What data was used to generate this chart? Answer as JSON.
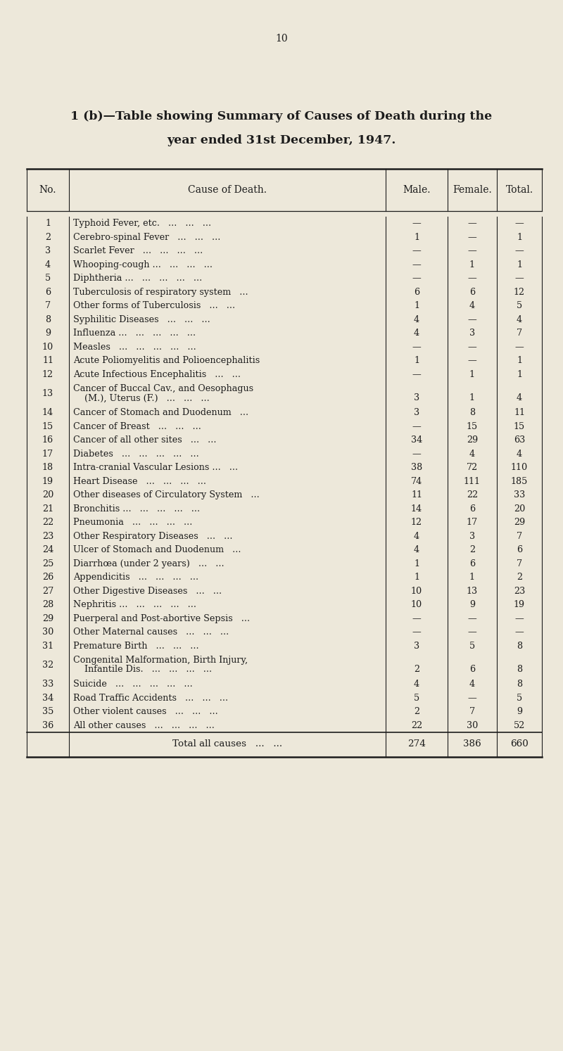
{
  "page_number": "10",
  "title_line1": "1 (b)—Table showing Summary of Causes of Death during the",
  "title_line2": "year ended 31st December, 1947.",
  "col_headers": [
    "No.",
    "Cause of Death.",
    "Male.",
    "Female.",
    "Total."
  ],
  "rows": [
    {
      "no": "1",
      "cause": "Typhoid Fever, etc.   ...   ...   ...",
      "male": "—",
      "female": "—",
      "total": "—"
    },
    {
      "no": "2",
      "cause": "Cerebro-spinal Fever   ...   ...   ...",
      "male": "1",
      "female": "—",
      "total": "1"
    },
    {
      "no": "3",
      "cause": "Scarlet Fever   ...   ...   ...   ...",
      "male": "—",
      "female": "—",
      "total": "—"
    },
    {
      "no": "4",
      "cause": "Whooping-cough ...   ...   ...   ...",
      "male": "—",
      "female": "1",
      "total": "1"
    },
    {
      "no": "5",
      "cause": "Diphtheria ...   ...   ...   ...   ...",
      "male": "—",
      "female": "—",
      "total": "—"
    },
    {
      "no": "6",
      "cause": "Tuberculosis of respiratory system   ...",
      "male": "6",
      "female": "6",
      "total": "12"
    },
    {
      "no": "7",
      "cause": "Other forms of Tuberculosis   ...   ...",
      "male": "1",
      "female": "4",
      "total": "5"
    },
    {
      "no": "8",
      "cause": "Syphilitic Diseases   ...   ...   ...",
      "male": "4",
      "female": "—",
      "total": "4"
    },
    {
      "no": "9",
      "cause": "Influenza ...   ...   ...   ...   ...",
      "male": "4",
      "female": "3",
      "total": "7"
    },
    {
      "no": "10",
      "cause": "Measles   ...   ...   ...   ...   ...",
      "male": "—",
      "female": "—",
      "total": "—"
    },
    {
      "no": "11",
      "cause": "Acute Poliomyelitis and Polioencephalitis",
      "male": "1",
      "female": "—",
      "total": "1"
    },
    {
      "no": "12",
      "cause": "Acute Infectious Encephalitis   ...   ...",
      "male": "—",
      "female": "1",
      "total": "1"
    },
    {
      "no": "13",
      "cause": "Cancer of Buccal Cav., and Oesophagus\n(M.), Uterus (F.)   ...   ...   ...",
      "male": "3",
      "female": "1",
      "total": "4"
    },
    {
      "no": "14",
      "cause": "Cancer of Stomach and Duodenum   ...",
      "male": "3",
      "female": "8",
      "total": "11"
    },
    {
      "no": "15",
      "cause": "Cancer of Breast   ...   ...   ...",
      "male": "—",
      "female": "15",
      "total": "15"
    },
    {
      "no": "16",
      "cause": "Cancer of all other sites   ...   ...",
      "male": "34",
      "female": "29",
      "total": "63"
    },
    {
      "no": "17",
      "cause": "Diabetes   ...   ...   ...   ...   ...",
      "male": "—",
      "female": "4",
      "total": "4"
    },
    {
      "no": "18",
      "cause": "Intra-cranial Vascular Lesions ...   ...",
      "male": "38",
      "female": "72",
      "total": "110"
    },
    {
      "no": "19",
      "cause": "Heart Disease   ...   ...   ...   ...",
      "male": "74",
      "female": "111",
      "total": "185"
    },
    {
      "no": "20",
      "cause": "Other diseases of Circulatory System   ...",
      "male": "11",
      "female": "22",
      "total": "33"
    },
    {
      "no": "21",
      "cause": "Bronchitis ...   ...   ...   ...   ...",
      "male": "14",
      "female": "6",
      "total": "20"
    },
    {
      "no": "22",
      "cause": "Pneumonia   ...   ...   ...   ...",
      "male": "12",
      "female": "17",
      "total": "29"
    },
    {
      "no": "23",
      "cause": "Other Respiratory Diseases   ...   ...",
      "male": "4",
      "female": "3",
      "total": "7"
    },
    {
      "no": "24",
      "cause": "Ulcer of Stomach and Duodenum   ...",
      "male": "4",
      "female": "2",
      "total": "6"
    },
    {
      "no": "25",
      "cause": "Diarrhœa (under 2 years)   ...   ...",
      "male": "1",
      "female": "6",
      "total": "7"
    },
    {
      "no": "26",
      "cause": "Appendicitis   ...   ...   ...   ...",
      "male": "1",
      "female": "1",
      "total": "2"
    },
    {
      "no": "27",
      "cause": "Other Digestive Diseases   ...   ...",
      "male": "10",
      "female": "13",
      "total": "23"
    },
    {
      "no": "28",
      "cause": "Nephritis ...   ...   ...   ...   ...",
      "male": "10",
      "female": "9",
      "total": "19"
    },
    {
      "no": "29",
      "cause": "Puerperal and Post-abortive Sepsis   ...",
      "male": "—",
      "female": "—",
      "total": "—"
    },
    {
      "no": "30",
      "cause": "Other Maternal causes   ...   ...   ...",
      "male": "—",
      "female": "—",
      "total": "—"
    },
    {
      "no": "31",
      "cause": "Premature Birth   ...   ...   ...",
      "male": "3",
      "female": "5",
      "total": "8"
    },
    {
      "no": "32",
      "cause": "Congenital Malformation, Birth Injury,\nInfantile Dis.   ...   ...   ...   ...",
      "male": "2",
      "female": "6",
      "total": "8"
    },
    {
      "no": "33",
      "cause": "Suicide   ...   ...   ...   ...   ...",
      "male": "4",
      "female": "4",
      "total": "8"
    },
    {
      "no": "34",
      "cause": "Road Traffic Accidents   ...   ...   ...",
      "male": "5",
      "female": "—",
      "total": "5"
    },
    {
      "no": "35",
      "cause": "Other violent causes   ...   ...   ...",
      "male": "2",
      "female": "7",
      "total": "9"
    },
    {
      "no": "36",
      "cause": "All other causes   ...   ...   ...   ...",
      "male": "22",
      "female": "30",
      "total": "52"
    }
  ],
  "total_row": {
    "cause": "Total all causes   ...   ...",
    "male": "274",
    "female": "386",
    "total": "660"
  },
  "bg_color": "#ede8da",
  "text_color": "#1c1c1c",
  "font_size": 9.2,
  "title_font_size": 12.5
}
